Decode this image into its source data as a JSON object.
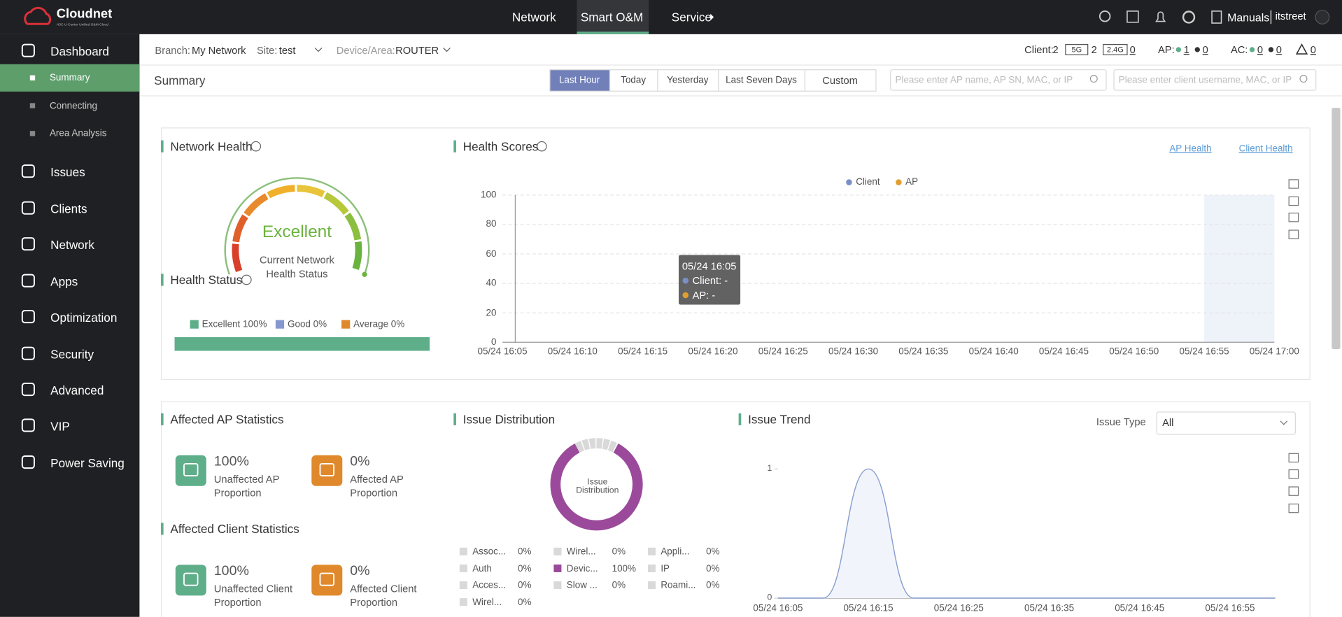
{
  "header": {
    "logo": "Cloudnet",
    "logo_sub": "H3C U-Center Unified O&M Cloud",
    "nav": [
      "Network",
      "Smart O&M",
      "Service"
    ],
    "active_nav": 1,
    "manuals": "Manuals",
    "user": "itstreet"
  },
  "sidebar": {
    "items": [
      {
        "label": "Dashboard",
        "children": [
          "Summary",
          "Connecting",
          "Area Analysis"
        ]
      },
      {
        "label": "Issues"
      },
      {
        "label": "Clients"
      },
      {
        "label": "Network"
      },
      {
        "label": "Apps"
      },
      {
        "label": "Optimization"
      },
      {
        "label": "Security"
      },
      {
        "label": "Advanced"
      },
      {
        "label": "VIP"
      },
      {
        "label": "Power Saving"
      }
    ],
    "active_child": 0
  },
  "filters": {
    "branch_label": "Branch:",
    "branch": "My Network",
    "site_label": "Site:",
    "site": "test",
    "device_label": "Device/Area:",
    "device": "ROUTER"
  },
  "status": {
    "client_label": "Client:",
    "client": 2,
    "band_5g_label": "5G",
    "band_5g": 2,
    "band_24g_label": "2.4G",
    "band_24g": 0,
    "ap_label": "AP:",
    "ap_online": 1,
    "ap_offline": 0,
    "ac_label": "AC:",
    "ac_online": 0,
    "ac_offline": 0,
    "alarms": 0
  },
  "toolbar": {
    "title": "Summary",
    "ranges": [
      "Last Hour",
      "Today",
      "Yesterday",
      "Last Seven Days",
      "Custom"
    ],
    "active_range": 0,
    "ap_search": "Please enter AP name, AP SN, MAC, or IP",
    "client_search": "Please enter client username, MAC, or IP"
  },
  "network_health": {
    "title": "Network Health",
    "status": "Excellent",
    "caption": "Current Network Health Status"
  },
  "health_status": {
    "title": "Health Status",
    "legend": [
      {
        "label": "Excellent 100%",
        "color": "#5fae8a"
      },
      {
        "label": "Good 0%",
        "color": "#8497cf"
      },
      {
        "label": "Average 0%",
        "color": "#e0892c"
      }
    ]
  },
  "health_scores": {
    "title": "Health Scores",
    "links": [
      "AP Health",
      "Client Health"
    ],
    "chart_data": {
      "type": "line",
      "categories": [
        "05/24 16:05",
        "05/24 16:10",
        "05/24 16:15",
        "05/24 16:20",
        "05/24 16:25",
        "05/24 16:30",
        "05/24 16:35",
        "05/24 16:40",
        "05/24 16:45",
        "05/24 16:50",
        "05/24 16:55",
        "05/24 17:00"
      ],
      "series": [
        {
          "name": "Client",
          "color": "#7b8fc7",
          "values": [
            null,
            null,
            null,
            null,
            null,
            null,
            null,
            null,
            null,
            null,
            null,
            null
          ]
        },
        {
          "name": "AP",
          "color": "#e0a030",
          "values": [
            null,
            null,
            null,
            null,
            null,
            null,
            null,
            null,
            null,
            null,
            null,
            null
          ]
        }
      ],
      "ylim": [
        0,
        100
      ],
      "yticks": [
        0,
        20,
        40,
        60,
        80,
        100
      ],
      "grid": true
    },
    "tooltip": {
      "time": "05/24 16:05",
      "lines": [
        "Client: -",
        "AP: -"
      ]
    }
  },
  "affected_ap": {
    "title": "Affected AP Statistics",
    "items": [
      {
        "value": "100%",
        "label": "Unaffected AP Proportion",
        "color": "#5fae8a"
      },
      {
        "value": "0%",
        "label": "Affected AP Proportion",
        "color": "#e0892c"
      }
    ]
  },
  "affected_client": {
    "title": "Affected Client Statistics",
    "items": [
      {
        "value": "100%",
        "label": "Unaffected Client Proportion",
        "color": "#5fae8a"
      },
      {
        "value": "0%",
        "label": "Affected Client Proportion",
        "color": "#e0892c"
      }
    ]
  },
  "issue_distribution": {
    "title": "Issue Distribution",
    "center": "Issue Distribution",
    "items": [
      {
        "name": "Assoc...",
        "value": "0%",
        "color": "#d9d9d9"
      },
      {
        "name": "Wirel...",
        "value": "0%",
        "color": "#d9d9d9"
      },
      {
        "name": "Appli...",
        "value": "0%",
        "color": "#d9d9d9"
      },
      {
        "name": "Auth",
        "value": "0%",
        "color": "#d9d9d9"
      },
      {
        "name": "Devic...",
        "value": "100%",
        "color": "#9b4a9b"
      },
      {
        "name": "IP",
        "value": "0%",
        "color": "#d9d9d9"
      },
      {
        "name": "Acces...",
        "value": "0%",
        "color": "#d9d9d9"
      },
      {
        "name": "Slow ...",
        "value": "0%",
        "color": "#d9d9d9"
      },
      {
        "name": "Roami...",
        "value": "0%",
        "color": "#d9d9d9"
      },
      {
        "name": "Wirel...",
        "value": "0%",
        "color": "#d9d9d9"
      }
    ]
  },
  "issue_trend": {
    "title": "Issue Trend",
    "filter_label": "Issue Type",
    "filter": "All",
    "chart_data": {
      "type": "line",
      "x": [
        "05/24 16:05",
        null,
        "05/24 16:15",
        null,
        "05/24 16:25",
        null,
        "05/24 16:35",
        null,
        "05/24 16:45",
        null,
        "05/24 16:55",
        null
      ],
      "values": [
        0,
        0,
        1,
        0,
        0,
        0,
        0,
        0,
        0,
        0,
        0,
        0
      ],
      "color": "#8aa0cf",
      "ylim": [
        0,
        1
      ],
      "yticks": [
        0,
        1
      ]
    }
  }
}
